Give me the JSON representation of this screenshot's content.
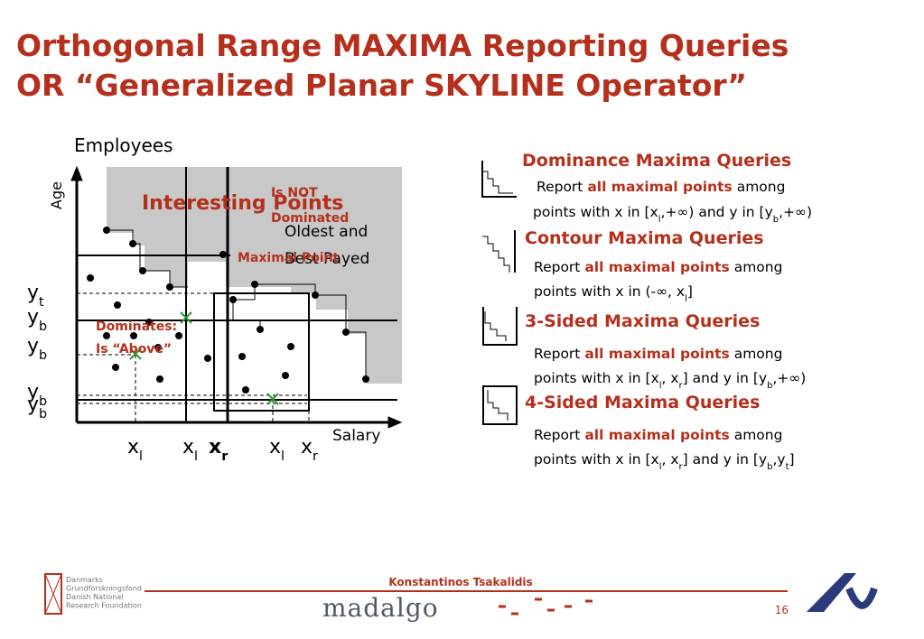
{
  "title": {
    "line1": "Orthogonal Range MAXIMA Reporting Queries",
    "line2": "OR “Generalized Planar SKYLINE Operator”"
  },
  "diagram": {
    "y_axis_title": "Employees",
    "y_axis_label": "Age",
    "x_axis_label": "Salary",
    "interesting": "Interesting Points",
    "not_dominated": [
      "Is NOT",
      "Dominated"
    ],
    "oldest": [
      "Oldest and",
      "Best Payed"
    ],
    "maximal": "Maximal Point",
    "dominates": [
      "Dominates:",
      "Is “Above”"
    ],
    "y_labels": [
      {
        "main": "y",
        "sub": "t"
      },
      {
        "main": "y",
        "sub": "b"
      },
      {
        "main": "y",
        "sub": "b"
      },
      {
        "main": "y",
        "sub": "b"
      },
      {
        "main": "y",
        "sub": "b"
      }
    ],
    "x_labels": [
      {
        "main": "x",
        "sub": "l"
      },
      {
        "main": "x",
        "sub": "l"
      },
      {
        "main": "x",
        "sub": "r"
      },
      {
        "main": "x",
        "sub": "l"
      },
      {
        "main": "x",
        "sub": "r"
      }
    ]
  },
  "queries": [
    {
      "title": "Dominance Maxima Queries",
      "line1": [
        "Report ",
        "all maximal points",
        " among"
      ],
      "line2": [
        {
          "t": "points with x in [x"
        },
        {
          "s": "l"
        },
        {
          "t": ",+∞) and y in [y"
        },
        {
          "s": "b"
        },
        {
          "t": ",+∞)"
        }
      ]
    },
    {
      "title": "Contour Maxima Queries",
      "line1": [
        "Report ",
        "all maximal points",
        " among"
      ],
      "line2": [
        {
          "t": "points with x in (-∞, x"
        },
        {
          "s": "l"
        },
        {
          "t": "]"
        }
      ]
    },
    {
      "title": "3-Sided Maxima Queries",
      "line1": [
        "Report ",
        "all maximal points",
        " among"
      ],
      "line2": [
        {
          "t": "points with x in [x"
        },
        {
          "s": "l"
        },
        {
          "t": ", x"
        },
        {
          "s": "r"
        },
        {
          "t": "] and y in [y"
        },
        {
          "s": "b"
        },
        {
          "t": ",+∞)"
        }
      ]
    },
    {
      "title": "4-Sided Maxima Queries",
      "line1": [
        "Report ",
        "all maximal points",
        " among"
      ],
      "line2": [
        {
          "t": "points with x in [x"
        },
        {
          "s": "l"
        },
        {
          "t": ", x"
        },
        {
          "s": "r"
        },
        {
          "t": "] and y in [y"
        },
        {
          "s": "b"
        },
        {
          "t": ",y"
        },
        {
          "s": "t"
        },
        {
          "t": "]"
        }
      ]
    }
  ],
  "footer": {
    "author": "Konstantinos Tsakalidis",
    "brand": "madalgo",
    "page": 16,
    "foundation": [
      "Danmarks",
      "Grundforskningsfond",
      "Danish National",
      "Research Foundation"
    ]
  }
}
